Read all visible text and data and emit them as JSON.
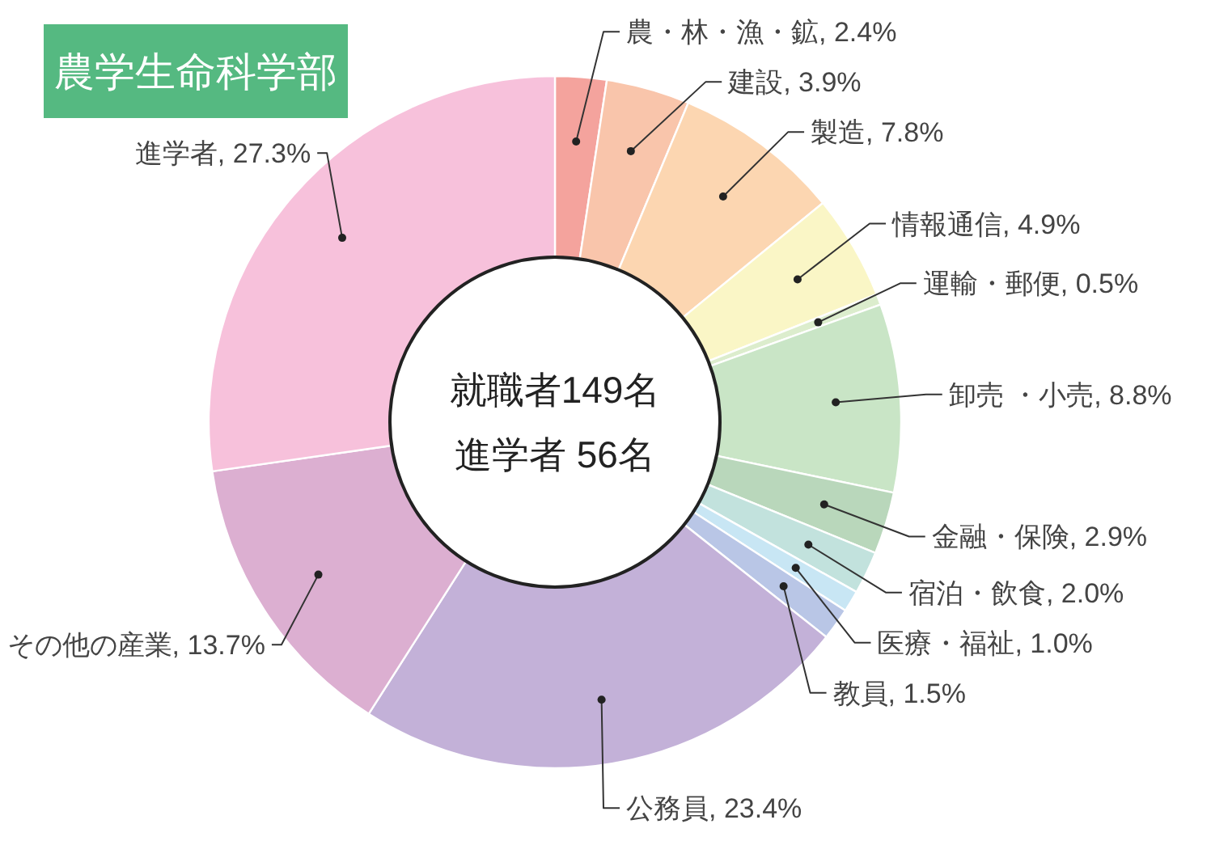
{
  "chart_data": {
    "type": "donut",
    "title": "農学生命科学部",
    "categories": [
      "農・林・漁・鉱",
      "建設",
      "製造",
      "情報通信",
      "運輸・郵便",
      "卸売 ・小売",
      "金融・保険",
      "宿泊・飲食",
      "医療・福祉",
      "教員",
      "公務員",
      "その他の産業",
      "進学者"
    ],
    "values": [
      2.4,
      3.9,
      7.8,
      4.9,
      0.5,
      8.8,
      2.9,
      2.0,
      1.0,
      1.5,
      23.4,
      13.7,
      27.3
    ],
    "value_labels": [
      "2.4%",
      "3.9%",
      "7.8%",
      "4.9%",
      "0.5%",
      "8.8%",
      "2.9%",
      "2.0%",
      "1.0%",
      "1.5%",
      "23.4%",
      "13.7%",
      "27.3%"
    ],
    "colors": [
      "#f4a39d",
      "#f9c5ab",
      "#fcd6b1",
      "#faf6c6",
      "#dcedcd",
      "#c9e5c6",
      "#b9d7bb",
      "#c2e2dd",
      "#c8e6f4",
      "#b9c6e6",
      "#c3b1d8",
      "#dcafd1",
      "#f7c1db"
    ],
    "annotations": [
      "就職者149名",
      "進学者 56名"
    ]
  }
}
